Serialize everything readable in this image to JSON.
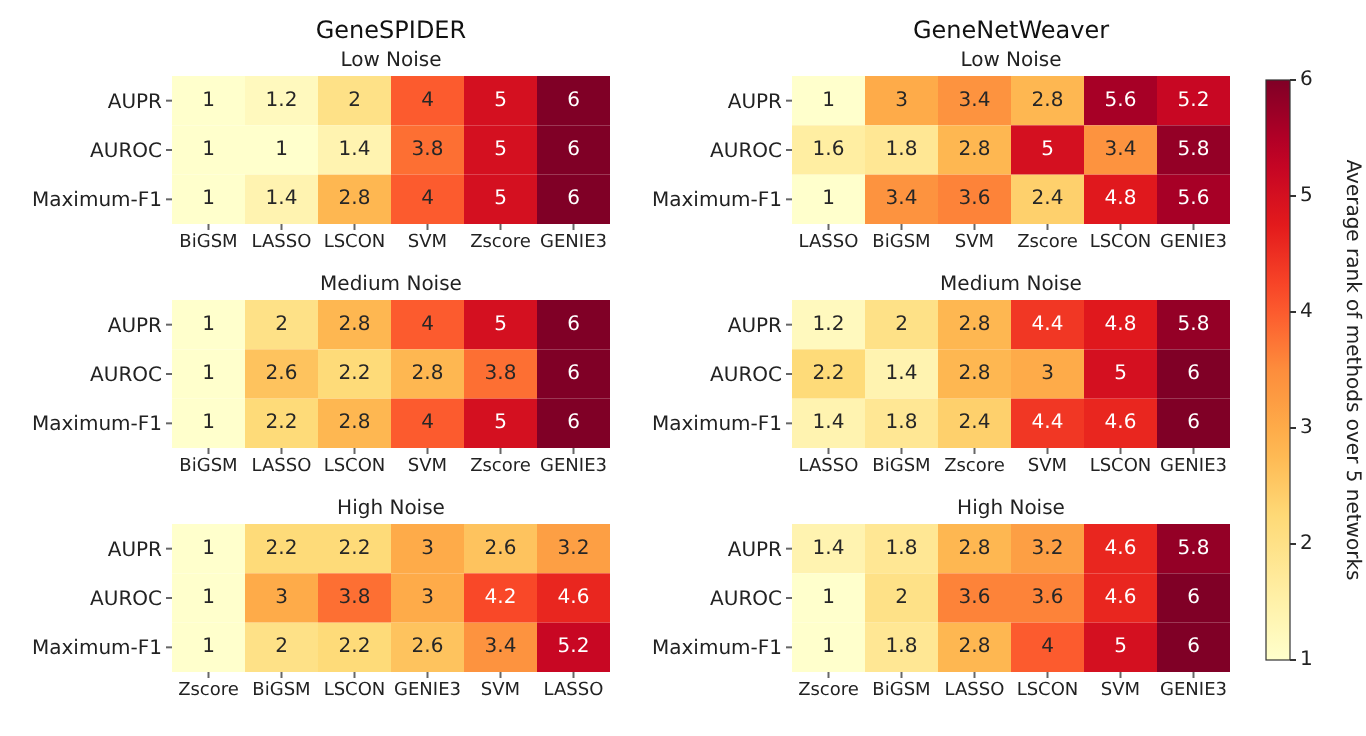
{
  "chart_data": [
    {
      "type": "heatmap",
      "title": "GeneSPIDER",
      "subtitle": "Low Noise",
      "categories": [
        "BiGSM",
        "LASSO",
        "LSCON",
        "SVM",
        "Zscore",
        "GENIE3"
      ],
      "y_categories": [
        "AUPR",
        "AUROC",
        "Maximum-F1"
      ],
      "cells": [
        [
          1,
          1.2,
          2,
          4,
          5,
          6
        ],
        [
          1,
          1,
          1.4,
          3.8,
          5,
          6
        ],
        [
          1,
          1.4,
          2.8,
          4,
          5,
          6
        ]
      ],
      "data_labels": true
    },
    {
      "type": "heatmap",
      "title": "GeneNetWeaver",
      "subtitle": "Low Noise",
      "categories": [
        "LASSO",
        "BiGSM",
        "SVM",
        "Zscore",
        "LSCON",
        "GENIE3"
      ],
      "y_categories": [
        "AUPR",
        "AUROC",
        "Maximum-F1"
      ],
      "cells": [
        [
          1,
          3,
          3.4,
          2.8,
          5.6,
          5.2
        ],
        [
          1.6,
          1.8,
          2.8,
          5,
          3.4,
          5.8
        ],
        [
          1,
          3.4,
          3.6,
          2.4,
          4.8,
          5.6
        ]
      ],
      "data_labels": true,
      "clim": [
        1,
        6
      ],
      "cticks": [
        1,
        2,
        3,
        4,
        5,
        6
      ],
      "clabel": "Average rank of methods over 5 networks"
    },
    {
      "type": "heatmap",
      "subtitle": "Medium Noise",
      "categories": [
        "BiGSM",
        "LASSO",
        "LSCON",
        "SVM",
        "Zscore",
        "GENIE3"
      ],
      "y_categories": [
        "AUPR",
        "AUROC",
        "Maximum-F1"
      ],
      "cells": [
        [
          1,
          2,
          2.8,
          4,
          5,
          6
        ],
        [
          1,
          2.6,
          2.2,
          2.8,
          3.8,
          6
        ],
        [
          1,
          2.2,
          2.8,
          4,
          5,
          6
        ]
      ],
      "data_labels": true
    },
    {
      "type": "heatmap",
      "subtitle": "Medium Noise",
      "categories": [
        "LASSO",
        "BiGSM",
        "Zscore",
        "SVM",
        "LSCON",
        "GENIE3"
      ],
      "y_categories": [
        "AUPR",
        "AUROC",
        "Maximum-F1"
      ],
      "cells": [
        [
          1.2,
          2,
          2.8,
          4.4,
          4.8,
          5.8
        ],
        [
          2.2,
          1.4,
          2.8,
          3,
          5,
          6
        ],
        [
          1.4,
          1.8,
          2.4,
          4.4,
          4.6,
          6
        ]
      ],
      "data_labels": true
    },
    {
      "type": "heatmap",
      "subtitle": "High Noise",
      "categories": [
        "Zscore",
        "BiGSM",
        "LSCON",
        "GENIE3",
        "SVM",
        "LASSO"
      ],
      "y_categories": [
        "AUPR",
        "AUROC",
        "Maximum-F1"
      ],
      "cells": [
        [
          1,
          2.2,
          2.2,
          3,
          2.6,
          3.2
        ],
        [
          1,
          3,
          3.8,
          3,
          4.2,
          4.6
        ],
        [
          1,
          2,
          2.2,
          2.6,
          3.4,
          5.2
        ]
      ],
      "data_labels": true
    },
    {
      "type": "heatmap",
      "subtitle": "High Noise",
      "categories": [
        "Zscore",
        "BiGSM",
        "LASSO",
        "LSCON",
        "SVM",
        "GENIE3"
      ],
      "y_categories": [
        "AUPR",
        "AUROC",
        "Maximum-F1"
      ],
      "cells": [
        [
          1.4,
          1.8,
          2.8,
          3.2,
          4.6,
          5.8
        ],
        [
          1,
          2,
          3.6,
          3.6,
          4.6,
          6
        ],
        [
          1,
          1.8,
          2.8,
          4,
          5,
          6
        ]
      ],
      "data_labels": true
    }
  ]
}
